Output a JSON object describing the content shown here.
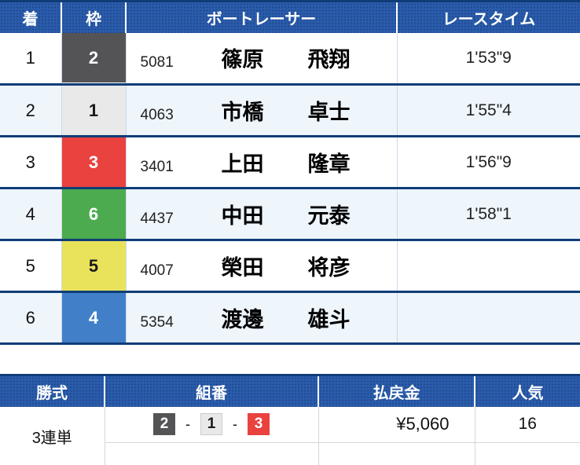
{
  "results_table": {
    "headers": {
      "place": "着",
      "frame": "枠",
      "racer": "ボートレーサー",
      "time": "レースタイム"
    },
    "rows": [
      {
        "place": "1",
        "frame": "2",
        "reg_no": "5081",
        "surname": "篠原",
        "given": "飛翔",
        "time": "1'53\"9"
      },
      {
        "place": "2",
        "frame": "1",
        "reg_no": "4063",
        "surname": "市橋",
        "given": "卓士",
        "time": "1'55\"4"
      },
      {
        "place": "3",
        "frame": "3",
        "reg_no": "3401",
        "surname": "上田",
        "given": "隆章",
        "time": "1'56\"9"
      },
      {
        "place": "4",
        "frame": "6",
        "reg_no": "4437",
        "surname": "中田",
        "given": "元泰",
        "time": "1'58\"1"
      },
      {
        "place": "5",
        "frame": "5",
        "reg_no": "4007",
        "surname": "榮田",
        "given": "将彦",
        "time": ""
      },
      {
        "place": "6",
        "frame": "4",
        "reg_no": "5354",
        "surname": "渡邊",
        "given": "雄斗",
        "time": ""
      }
    ]
  },
  "payout_table": {
    "headers": {
      "bet_type": "勝式",
      "combination": "組番",
      "payout": "払戻金",
      "popularity": "人気"
    },
    "row": {
      "bet_type": "3連単",
      "combination": [
        "2",
        "1",
        "3"
      ],
      "separator": "-",
      "payout": "¥5,060",
      "popularity": "16"
    }
  },
  "colors": {
    "header_blue": "#2a5cab",
    "border_navy": "#0f3d78",
    "row_alt_blue": "#eef5fb",
    "frame_1": "#e9e9e9",
    "frame_2": "#545456",
    "frame_3": "#e9423f",
    "frame_4": "#4180c8",
    "frame_5": "#e9e35c",
    "frame_6": "#4cab4e"
  }
}
